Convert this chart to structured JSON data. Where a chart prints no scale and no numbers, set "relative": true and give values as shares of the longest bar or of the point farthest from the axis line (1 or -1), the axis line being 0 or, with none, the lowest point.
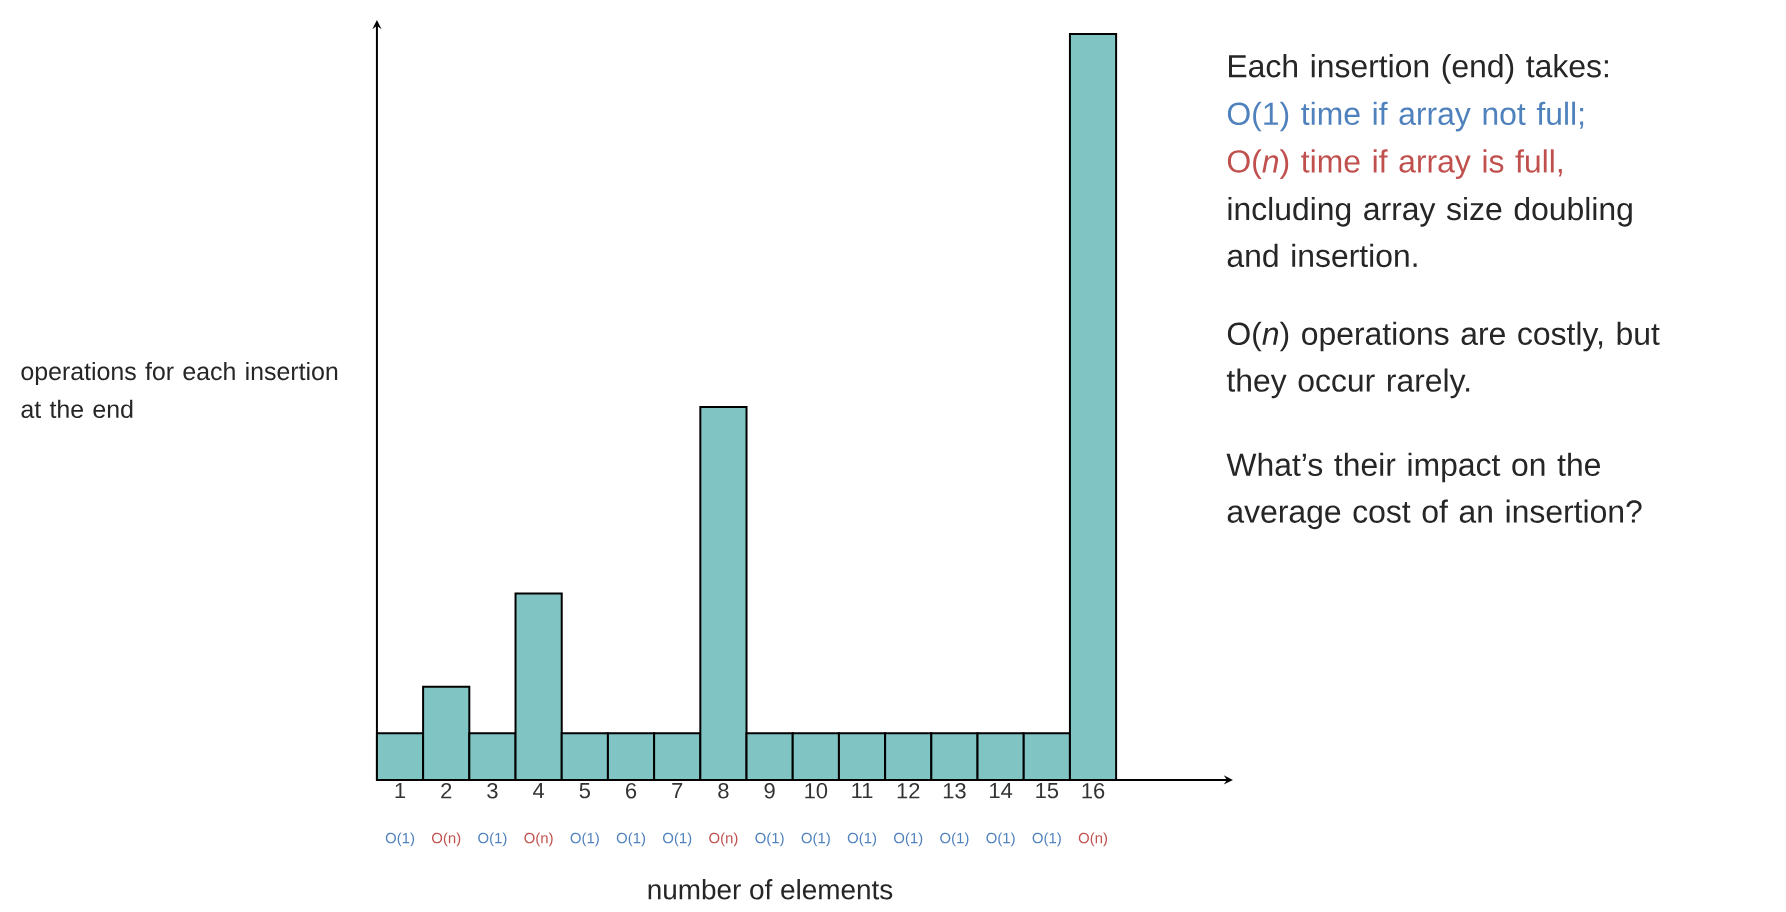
{
  "chart_data": {
    "type": "bar",
    "relative": true,
    "xlabel": "number of elements",
    "ylabel": "operations for each insertion at the end",
    "categories": [
      "1",
      "2",
      "3",
      "4",
      "5",
      "6",
      "7",
      "8",
      "9",
      "10",
      "11",
      "12",
      "13",
      "14",
      "15",
      "16"
    ],
    "values": [
      0.0625,
      0.125,
      0.0625,
      0.25,
      0.0625,
      0.0625,
      0.0625,
      0.5,
      0.0625,
      0.0625,
      0.0625,
      0.0625,
      0.0625,
      0.0625,
      0.0625,
      1
    ],
    "color": "#80c4c4",
    "annotations": [
      "O(1)",
      "O(n)",
      "O(1)",
      "O(n)",
      "O(1)",
      "O(1)",
      "O(1)",
      "O(n)",
      "O(1)",
      "O(1)",
      "O(1)",
      "O(1)",
      "O(1)",
      "O(1)",
      "O(1)",
      "O(n)",
      "Each insertion (end) takes:",
      "O(1) time if array not full;",
      "O(*n*) time if array is full,",
      "including array size doubling and insertion.",
      "O(*n*) operations are costly, but they occur rarely.",
      "What’s their impact on the average cost of an insertion?"
    ]
  }
}
